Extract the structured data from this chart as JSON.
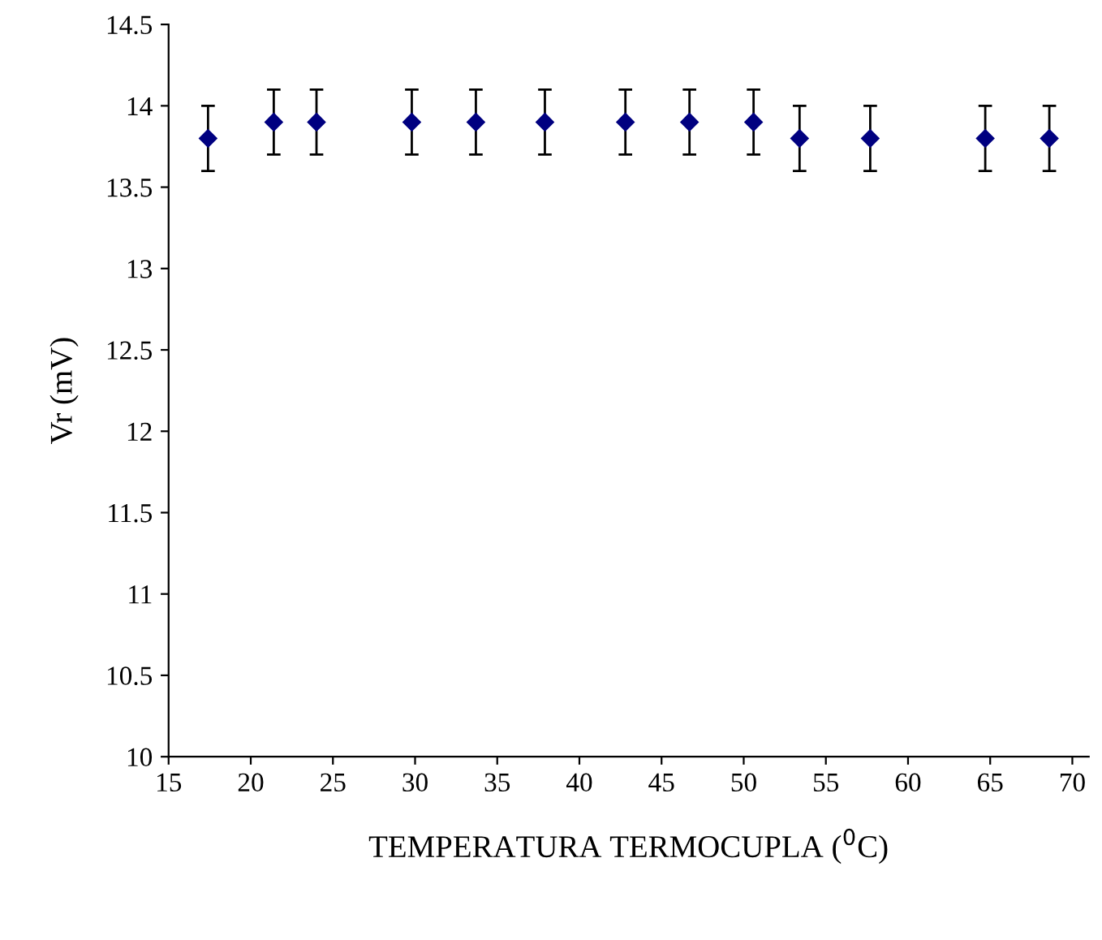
{
  "chart_data": {
    "type": "scatter",
    "xlabel": "TEMPERATURA TERMOCUPLA ($^{0}$C)",
    "ylabel": "Vr (mV)",
    "x": [
      17.4,
      21.4,
      24.0,
      29.8,
      33.7,
      37.9,
      42.8,
      46.7,
      50.6,
      53.4,
      57.7,
      64.7,
      68.6
    ],
    "values": [
      13.8,
      13.9,
      13.9,
      13.9,
      13.9,
      13.9,
      13.9,
      13.9,
      13.9,
      13.8,
      13.8,
      13.8,
      13.8
    ],
    "errors": [
      0.2,
      0.2,
      0.2,
      0.2,
      0.2,
      0.2,
      0.2,
      0.2,
      0.2,
      0.2,
      0.2,
      0.2,
      0.2
    ],
    "color": "#000080",
    "marker": "diamond",
    "grid": false,
    "legend": false,
    "xlim": [
      15,
      71
    ],
    "xticks": [
      15,
      20,
      25,
      30,
      35,
      40,
      45,
      50,
      55,
      60,
      65,
      70
    ],
    "ylim": [
      10,
      14.5
    ],
    "yticks": [
      10,
      10.5,
      11,
      11.5,
      12,
      12.5,
      13,
      13.5,
      14,
      14.5
    ]
  }
}
